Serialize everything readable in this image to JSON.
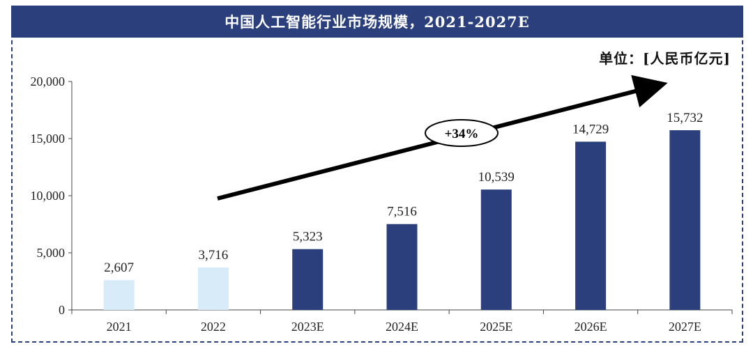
{
  "header": {
    "title": "中国人工智能行业市场规模，2021-2027E"
  },
  "unit_label": "单位：[人民币亿元]",
  "growth_label": "+34%",
  "colors": {
    "actual": "#d7ebf9",
    "forecast": "#2b3f7d",
    "header_bg": "#2b3f7d",
    "arrow": "#000000"
  },
  "chart_data": {
    "type": "bar",
    "title": "中国人工智能行业市场规模，2021-2027E",
    "xlabel": "",
    "ylabel": "单位：[人民币亿元]",
    "categories": [
      "2021",
      "2022",
      "2023E",
      "2024E",
      "2025E",
      "2026E",
      "2027E"
    ],
    "values": [
      2607,
      3716,
      5323,
      7516,
      10539,
      14729,
      15732
    ],
    "value_labels": [
      "2,607",
      "3,716",
      "5,323",
      "7,516",
      "10,539",
      "14,729",
      "15,732"
    ],
    "bar_kind": [
      "actual",
      "actual",
      "forecast",
      "forecast",
      "forecast",
      "forecast",
      "forecast"
    ],
    "yticks": [
      0,
      5000,
      10000,
      15000,
      20000
    ],
    "ytick_labels": [
      "0",
      "5,000",
      "10,000",
      "15,000",
      "20,000"
    ],
    "ylim": [
      0,
      20000
    ],
    "annotation": "+34%",
    "grid": false
  }
}
